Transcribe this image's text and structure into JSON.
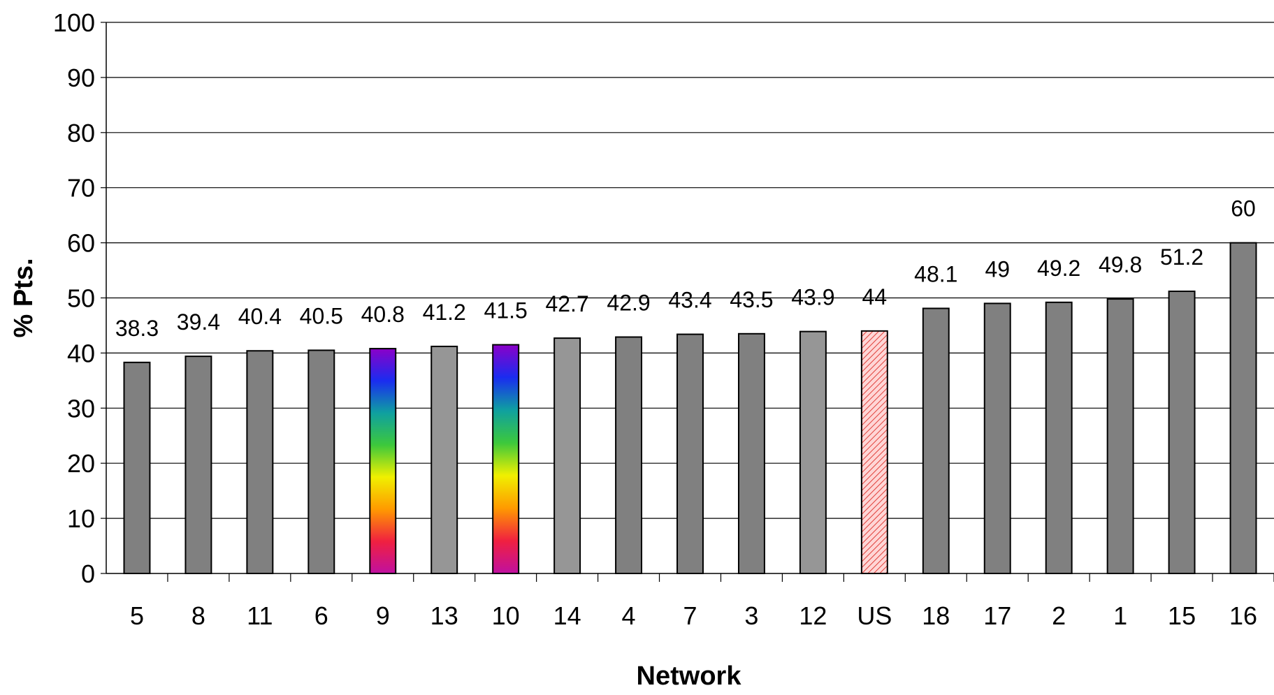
{
  "chart_data": {
    "type": "bar",
    "title": "",
    "xlabel": "Network",
    "ylabel": "% Pts.",
    "ylim": [
      0,
      100
    ],
    "yticks": [
      0,
      10,
      20,
      30,
      40,
      50,
      60,
      70,
      80,
      90,
      100
    ],
    "grid": true,
    "legend": "none",
    "categories": [
      "5",
      "8",
      "11",
      "6",
      "9",
      "13",
      "10",
      "14",
      "4",
      "7",
      "3",
      "12",
      "US",
      "18",
      "17",
      "2",
      "1",
      "15",
      "16"
    ],
    "values": [
      38.3,
      39.4,
      40.4,
      40.5,
      40.8,
      41.2,
      41.5,
      42.7,
      42.9,
      43.4,
      43.5,
      43.9,
      44,
      48.1,
      49,
      49.2,
      49.8,
      51.2,
      60
    ],
    "data_labels": [
      "38.3",
      "39.4",
      "40.4",
      "40.5",
      "40.8",
      "41.2",
      "41.5",
      "42.7",
      "42.9",
      "43.4",
      "43.5",
      "43.9",
      "44",
      "48.1",
      "49",
      "49.2",
      "49.8",
      "51.2",
      "60"
    ],
    "bar_styles": [
      "dark",
      "dark",
      "dark",
      "dark",
      "rainbow",
      "light",
      "rainbow",
      "light",
      "dark",
      "dark",
      "dark",
      "light",
      "hatched",
      "dark",
      "dark",
      "dark",
      "dark",
      "dark",
      "dark"
    ],
    "colors": {
      "dark": "#808080",
      "light": "#969696",
      "hatched_bg": "#ffd6d6",
      "hatched_line": "#e0403a",
      "gridline": "#000000",
      "rainbow": [
        "#8b00c8",
        "#1a2cf0",
        "#0fa0a0",
        "#3cc83c",
        "#f0f000",
        "#ff9a00",
        "#f02040",
        "#c010a0"
      ]
    }
  }
}
